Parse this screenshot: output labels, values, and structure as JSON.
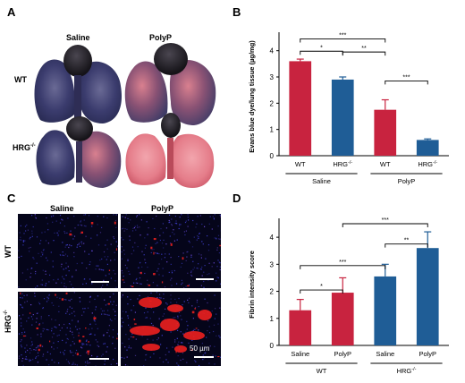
{
  "panels": {
    "a": {
      "label": "A",
      "col_saline": "Saline",
      "col_polyp": "PolyP",
      "row_wt": "WT",
      "row_hrg": "HRG",
      "row_hrg_sup": "-/-"
    },
    "c": {
      "label": "C",
      "col_saline": "Saline",
      "col_polyp": "PolyP",
      "row_wt": "WT",
      "row_hrg": "HRG",
      "row_hrg_sup": "-/-",
      "scale_bar": "50 µm"
    },
    "b": {
      "label": "B"
    },
    "d": {
      "label": "D"
    }
  },
  "chart_data": [
    {
      "id": "b",
      "type": "bar",
      "ylabel": "Evans blue dye/lung tissue (µg/mg)",
      "ylim": [
        0,
        4.5
      ],
      "yticks": [
        "0",
        "1",
        "2",
        "3",
        "4"
      ],
      "categories": [
        "WT",
        "HRG",
        "WT",
        "HRG"
      ],
      "category_sup": [
        "",
        "-/-",
        "",
        "-/-"
      ],
      "values": [
        3.6,
        2.9,
        1.75,
        0.6
      ],
      "errors": [
        0.08,
        0.1,
        0.38,
        0.04
      ],
      "colors": [
        "#c8233f",
        "#1f5d96",
        "#c8233f",
        "#1f5d96"
      ],
      "groups": [
        "Saline",
        "PolyP"
      ],
      "significance": [
        {
          "pair": [
            0,
            2
          ],
          "label": "***"
        },
        {
          "pair": [
            0,
            1
          ],
          "label": "*"
        },
        {
          "pair": [
            1,
            2
          ],
          "label": "**"
        },
        {
          "pair": [
            2,
            3
          ],
          "label": "***"
        }
      ]
    },
    {
      "id": "d",
      "type": "bar",
      "ylabel": "Fibrin intensity score",
      "ylim": [
        0,
        4.5
      ],
      "yticks": [
        "0",
        "1",
        "2",
        "3",
        "4"
      ],
      "categories": [
        "Saline",
        "PolyP",
        "Saline",
        "PolyP"
      ],
      "values": [
        1.3,
        1.95,
        2.55,
        3.6
      ],
      "errors": [
        0.4,
        0.55,
        0.45,
        0.6
      ],
      "colors": [
        "#c8233f",
        "#c8233f",
        "#1f5d96",
        "#1f5d96"
      ],
      "groups": [
        "WT",
        "HRG"
      ],
      "group_sup": [
        "",
        "-/-"
      ],
      "significance": [
        {
          "pair": [
            1,
            3
          ],
          "label": "***"
        },
        {
          "pair": [
            0,
            2
          ],
          "label": "***"
        },
        {
          "pair": [
            0,
            1
          ],
          "label": "*"
        },
        {
          "pair": [
            2,
            3
          ],
          "label": "**"
        }
      ]
    }
  ]
}
